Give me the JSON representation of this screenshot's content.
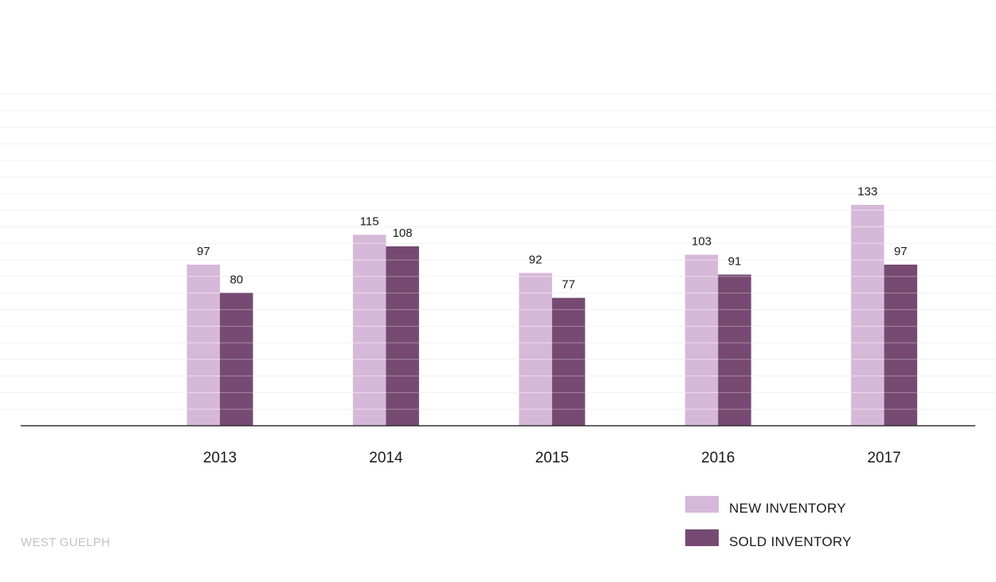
{
  "chart_data": {
    "type": "bar",
    "categories": [
      "2013",
      "2014",
      "2015",
      "2016",
      "2017"
    ],
    "series": [
      {
        "name": "NEW INVENTORY",
        "values": [
          97,
          115,
          92,
          103,
          133
        ],
        "color": "#d6b8d8"
      },
      {
        "name": "SOLD INVENTORY",
        "values": [
          80,
          108,
          77,
          91,
          97
        ],
        "color": "#764a72"
      }
    ],
    "title": "",
    "xlabel": "",
    "ylabel": "",
    "ylim": [
      0,
      200
    ],
    "grid": true,
    "legend_position": "bottom-right",
    "footer": "WEST GUELPH"
  }
}
